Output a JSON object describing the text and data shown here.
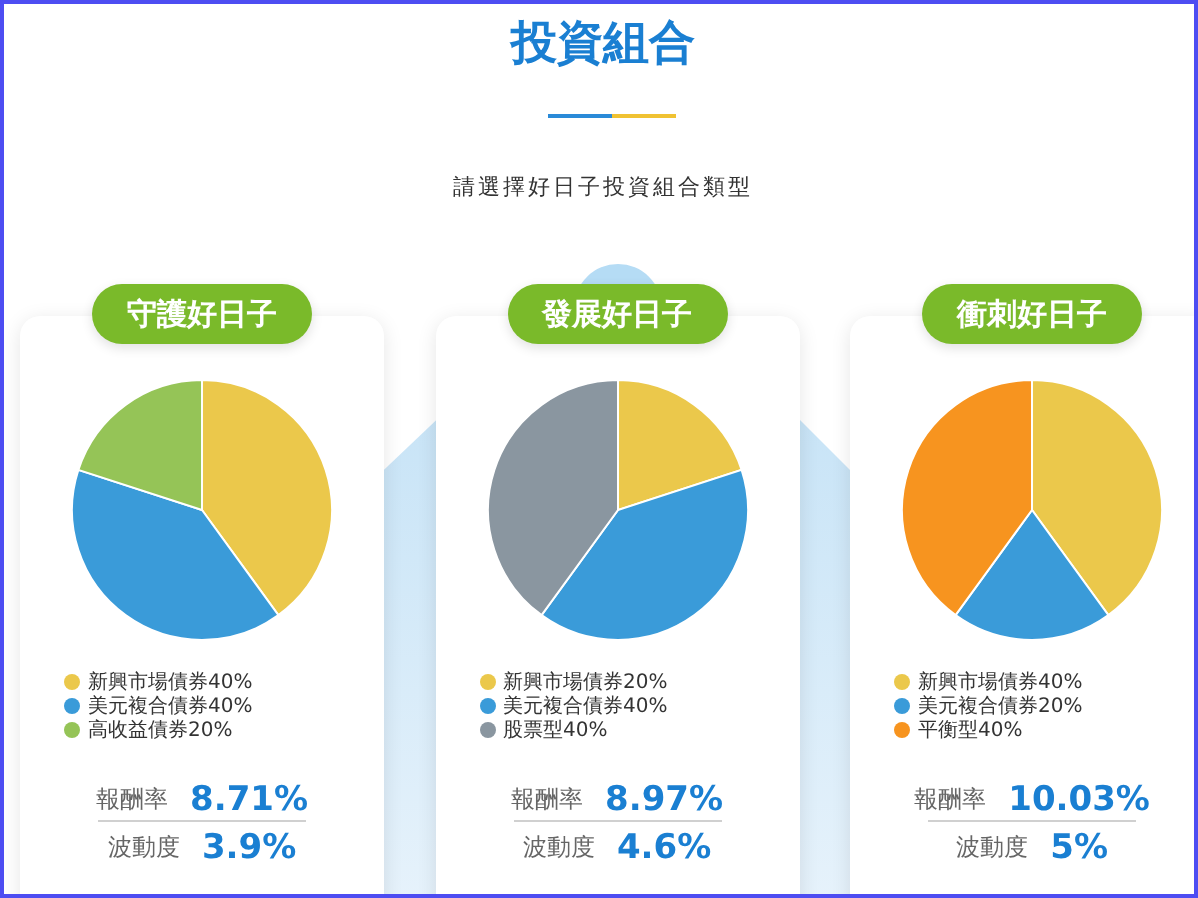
{
  "chart_data": [
    {
      "type": "other",
      "title": "投資組合",
      "subtitle": "請選擇好日子投資組合類型"
    },
    {
      "type": "pie",
      "title": "守護好日子",
      "categories": [
        "新興市場債券40%",
        "美元複合債券40%",
        "高收益債券20%"
      ],
      "values": [
        40,
        40,
        20
      ],
      "colors": [
        "#ebc84b",
        "#3a9bd9",
        "#95c457"
      ],
      "legend": "bottom left",
      "annotations": [
        "報酬率 8.71%",
        "波動度 3.9%"
      ]
    },
    {
      "type": "pie",
      "title": "發展好日子",
      "categories": [
        "新興市場債券20%",
        "美元複合債券40%",
        "股票型40%"
      ],
      "values": [
        20,
        40,
        40
      ],
      "colors": [
        "#ebc84b",
        "#3a9bd9",
        "#8a96a0"
      ],
      "legend": "bottom left",
      "annotations": [
        "報酬率 8.97%",
        "波動度 4.6%"
      ]
    },
    {
      "type": "pie",
      "title": "衝刺好日子",
      "categories": [
        "新興市場債券40%",
        "美元複合債券20%",
        "平衡型40%"
      ],
      "values": [
        40,
        20,
        40
      ],
      "colors": [
        "#ebc84b",
        "#3a9bd9",
        "#f7941f"
      ],
      "legend": "bottom left",
      "annotations": [
        "報酬率 10.03%",
        "波動度 5%"
      ]
    }
  ]
}
